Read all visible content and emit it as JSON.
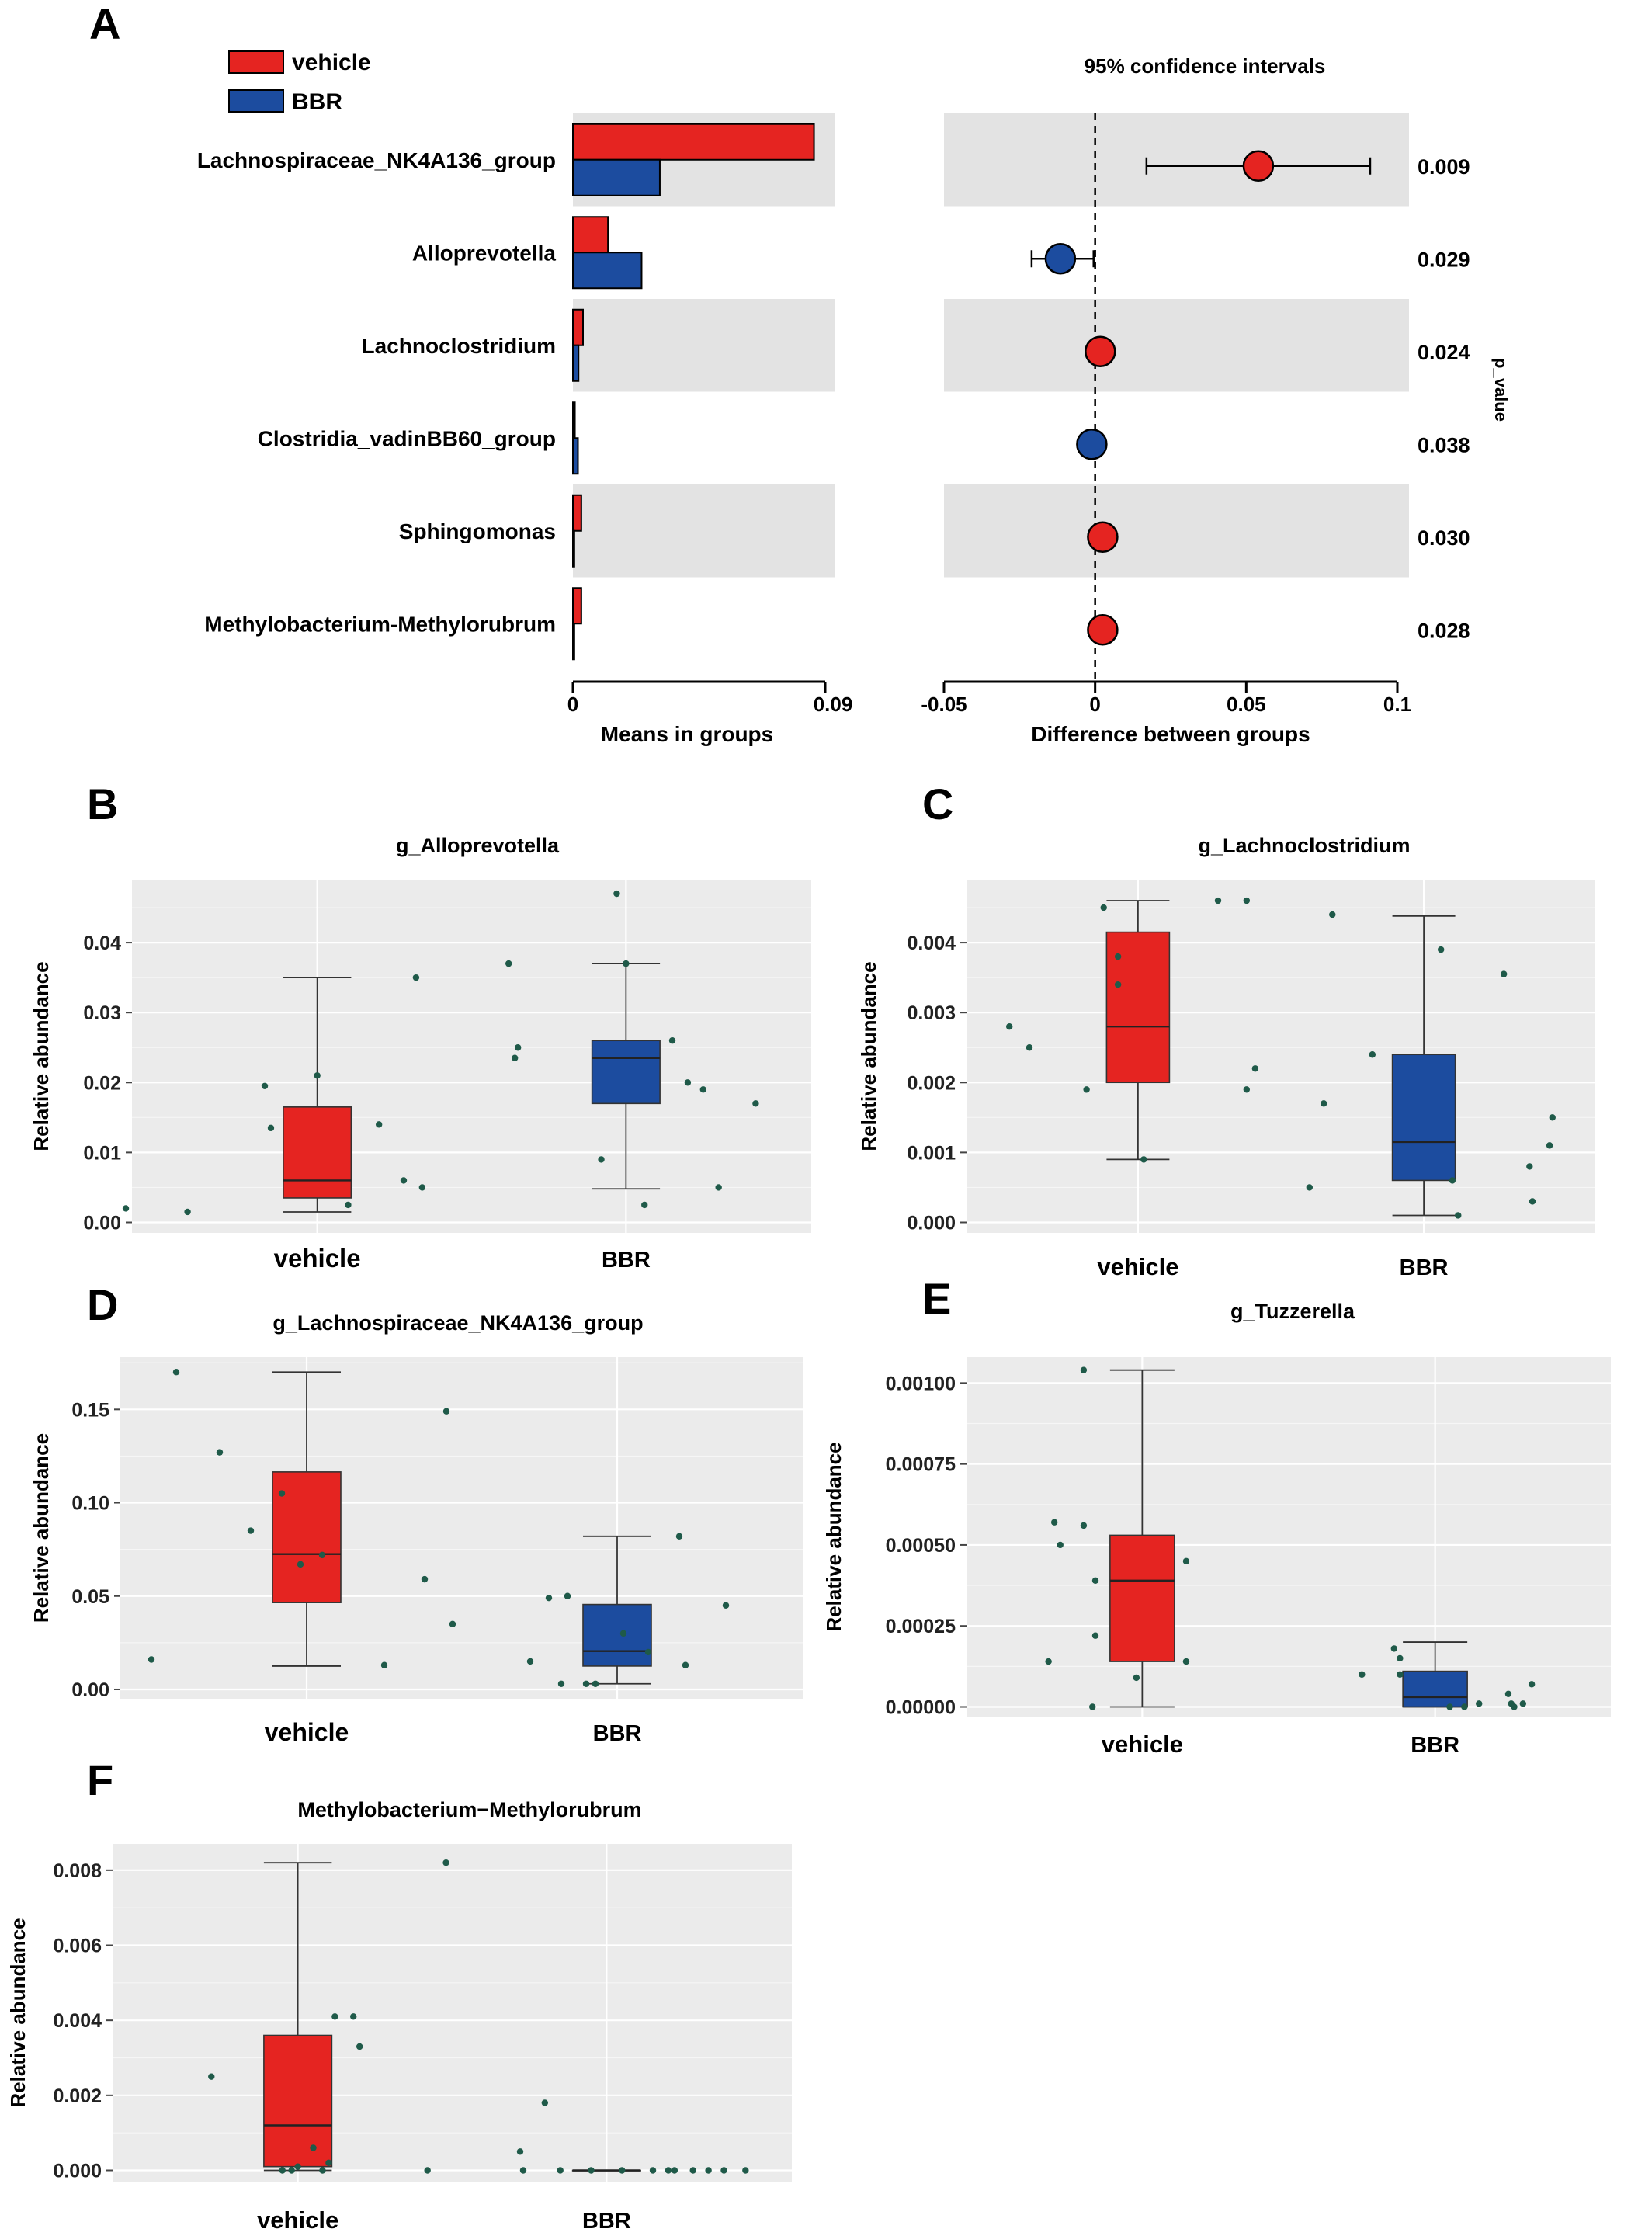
{
  "colors": {
    "vehicle": "#e52421",
    "BBR": "#1c4c9f",
    "panel_bg": "#ebebeb",
    "grid": "#ffffff",
    "stripe": "#e3e3e3",
    "dot": "#1f5a49"
  },
  "panel_letters": {
    "A": "A",
    "B": "B",
    "C": "C",
    "D": "D",
    "E": "E",
    "F": "F"
  },
  "legend": [
    {
      "name": "vehicle",
      "color": "#e52421"
    },
    {
      "name": "BBR",
      "color": "#1c4c9f"
    }
  ],
  "chart_data": [
    {
      "type": "bar",
      "panel": "A-left",
      "xlabel": "Means in groups",
      "xlim": [
        0,
        0.09
      ],
      "xticks": [
        "0",
        "0.09"
      ],
      "categories": [
        "Lachnospiraceae_NK4A136_group",
        "Alloprevotella",
        "Lachnoclostridium",
        "Clostridia_vadinBB60_group",
        "Sphingomonas",
        "Methylobacterium-Methylorubrum"
      ],
      "series": [
        {
          "name": "vehicle",
          "values": [
            0.086,
            0.0125,
            0.0036,
            0.0007,
            0.003,
            0.003
          ]
        },
        {
          "name": "BBR",
          "values": [
            0.031,
            0.0245,
            0.002,
            0.0018,
            0.0005,
            0.0005
          ]
        }
      ]
    },
    {
      "type": "scatter",
      "panel": "A-right",
      "title": "95% confidence intervals",
      "xlabel": "Difference between groups",
      "right_label": "p_value",
      "xlim": [
        -0.05,
        0.1
      ],
      "xticks": [
        "-0.05",
        "0",
        "0.05",
        "0.1"
      ],
      "categories": [
        "Lachnospiraceae_NK4A136_group",
        "Alloprevotella",
        "Lachnoclostridium",
        "Clostridia_vadinBB60_group",
        "Sphingomonas",
        "Methylobacterium-Methylorubrum"
      ],
      "estimates": [
        0.054,
        -0.0115,
        0.0017,
        -0.0011,
        0.0025,
        0.0025
      ],
      "ci_low": [
        0.017,
        -0.021,
        0.0005,
        -0.0025,
        0.0008,
        0.0008
      ],
      "ci_high": [
        0.091,
        -0.0005,
        0.003,
        0.0003,
        0.0042,
        0.0042
      ],
      "enriched": [
        "vehicle",
        "BBR",
        "vehicle",
        "BBR",
        "vehicle",
        "vehicle"
      ],
      "p_values": [
        "0.009",
        "0.029",
        "0.024",
        "0.038",
        "0.030",
        "0.028"
      ]
    },
    {
      "type": "box",
      "panel": "B",
      "title": "g_Alloprevotella",
      "ylabel": "Relative abundance",
      "categories": [
        "vehicle",
        "BBR"
      ],
      "ylim": [
        -0.0015,
        0.049
      ],
      "yticks": [
        "0.00",
        "0.01",
        "0.02",
        "0.03",
        "0.04"
      ],
      "boxes": [
        {
          "name": "vehicle",
          "min": 0.0015,
          "q1": 0.0035,
          "median": 0.006,
          "q3": 0.0165,
          "max": 0.035
        },
        {
          "name": "BBR",
          "min": 0.0048,
          "q1": 0.017,
          "median": 0.0235,
          "q3": 0.026,
          "max": 0.037
        }
      ],
      "points": [
        {
          "x": 0.38,
          "y": 0.002
        },
        {
          "x": 0.58,
          "y": 0.0015
        },
        {
          "x": 0.83,
          "y": 0.0195
        },
        {
          "x": 0.85,
          "y": 0.0135
        },
        {
          "x": 1.0,
          "y": 0.021
        },
        {
          "x": 1.1,
          "y": 0.0025
        },
        {
          "x": 1.2,
          "y": 0.014
        },
        {
          "x": 1.28,
          "y": 0.006
        },
        {
          "x": 1.32,
          "y": 0.035
        },
        {
          "x": 1.34,
          "y": 0.005
        },
        {
          "x": 1.62,
          "y": 0.037
        },
        {
          "x": 1.64,
          "y": 0.0235
        },
        {
          "x": 1.65,
          "y": 0.025
        },
        {
          "x": 1.92,
          "y": 0.009
        },
        {
          "x": 1.97,
          "y": 0.047
        },
        {
          "x": 2.0,
          "y": 0.037
        },
        {
          "x": 2.06,
          "y": 0.0025
        },
        {
          "x": 2.15,
          "y": 0.026
        },
        {
          "x": 2.2,
          "y": 0.02
        },
        {
          "x": 2.25,
          "y": 0.019
        },
        {
          "x": 2.3,
          "y": 0.005
        },
        {
          "x": 2.42,
          "y": 0.017
        }
      ]
    },
    {
      "type": "box",
      "panel": "C",
      "title": "g_Lachnoclostridium",
      "ylabel": "Relative abundance",
      "categories": [
        "vehicle",
        "BBR"
      ],
      "ylim": [
        -0.00015,
        0.0049
      ],
      "yticks": [
        "0.000",
        "0.001",
        "0.002",
        "0.003",
        "0.004"
      ],
      "boxes": [
        {
          "name": "vehicle",
          "min": 0.0009,
          "q1": 0.002,
          "median": 0.0028,
          "q3": 0.00415,
          "max": 0.0046
        },
        {
          "name": "BBR",
          "min": 0.0001,
          "q1": 0.0006,
          "median": 0.00115,
          "q3": 0.0024,
          "max": 0.00438
        }
      ],
      "points": [
        {
          "x": 0.55,
          "y": 0.0028
        },
        {
          "x": 0.62,
          "y": 0.0025
        },
        {
          "x": 0.82,
          "y": 0.0019
        },
        {
          "x": 0.88,
          "y": 0.0045
        },
        {
          "x": 0.93,
          "y": 0.0038
        },
        {
          "x": 0.93,
          "y": 0.0034
        },
        {
          "x": 1.02,
          "y": 0.0009
        },
        {
          "x": 1.28,
          "y": 0.0046
        },
        {
          "x": 1.38,
          "y": 0.0046
        },
        {
          "x": 1.38,
          "y": 0.0019
        },
        {
          "x": 1.41,
          "y": 0.0022
        },
        {
          "x": 1.6,
          "y": 0.0005
        },
        {
          "x": 1.65,
          "y": 0.0017
        },
        {
          "x": 1.68,
          "y": 0.0044
        },
        {
          "x": 1.82,
          "y": 0.0024
        },
        {
          "x": 2.06,
          "y": 0.0039
        },
        {
          "x": 2.1,
          "y": 0.0006
        },
        {
          "x": 2.12,
          "y": 0.0001
        },
        {
          "x": 2.28,
          "y": 0.00355
        },
        {
          "x": 2.37,
          "y": 0.0008
        },
        {
          "x": 2.38,
          "y": 0.0003
        },
        {
          "x": 2.44,
          "y": 0.0011
        },
        {
          "x": 2.45,
          "y": 0.0015
        }
      ]
    },
    {
      "type": "box",
      "panel": "D",
      "title": "g_Lachnospiraceae_NK4A136_group",
      "ylabel": "Relative abundance",
      "categories": [
        "vehicle",
        "BBR"
      ],
      "ylim": [
        -0.005,
        0.178
      ],
      "yticks": [
        "0.00",
        "0.05",
        "0.10",
        "0.15"
      ],
      "boxes": [
        {
          "name": "vehicle",
          "min": 0.0125,
          "q1": 0.0465,
          "median": 0.0725,
          "q3": 0.1165,
          "max": 0.17
        },
        {
          "name": "BBR",
          "min": 0.003,
          "q1": 0.0125,
          "median": 0.0205,
          "q3": 0.0455,
          "max": 0.082
        }
      ],
      "points": [
        {
          "x": 0.5,
          "y": 0.016
        },
        {
          "x": 0.58,
          "y": 0.17
        },
        {
          "x": 0.72,
          "y": 0.127
        },
        {
          "x": 0.82,
          "y": 0.085
        },
        {
          "x": 0.92,
          "y": 0.105
        },
        {
          "x": 0.98,
          "y": 0.067
        },
        {
          "x": 1.05,
          "y": 0.072
        },
        {
          "x": 1.25,
          "y": 0.013
        },
        {
          "x": 1.38,
          "y": 0.059
        },
        {
          "x": 1.45,
          "y": 0.149
        },
        {
          "x": 1.47,
          "y": 0.035
        },
        {
          "x": 1.72,
          "y": 0.015
        },
        {
          "x": 1.78,
          "y": 0.049
        },
        {
          "x": 1.82,
          "y": 0.003
        },
        {
          "x": 1.84,
          "y": 0.05
        },
        {
          "x": 1.9,
          "y": 0.003
        },
        {
          "x": 1.93,
          "y": 0.003
        },
        {
          "x": 2.02,
          "y": 0.03
        },
        {
          "x": 2.1,
          "y": 0.02
        },
        {
          "x": 2.2,
          "y": 0.082
        },
        {
          "x": 2.22,
          "y": 0.013
        },
        {
          "x": 2.35,
          "y": 0.045
        }
      ]
    },
    {
      "type": "box",
      "panel": "E",
      "title": "g_Tuzzerella",
      "ylabel": "Relative abundance",
      "categories": [
        "vehicle",
        "BBR"
      ],
      "ylim": [
        -3e-05,
        0.00108
      ],
      "yticks": [
        "0.00000",
        "0.00025",
        "0.00050",
        "0.00075",
        "0.00100"
      ],
      "boxes": [
        {
          "name": "vehicle",
          "min": 0.0,
          "q1": 0.00014,
          "median": 0.00039,
          "q3": 0.00053,
          "max": 0.00104
        },
        {
          "name": "BBR",
          "min": 0.0,
          "q1": 0.0,
          "median": 3e-05,
          "q3": 0.00011,
          "max": 0.0002
        }
      ],
      "points": [
        {
          "x": 0.68,
          "y": 0.00014
        },
        {
          "x": 0.7,
          "y": 0.00057
        },
        {
          "x": 0.72,
          "y": 0.0005
        },
        {
          "x": 0.8,
          "y": 0.00104
        },
        {
          "x": 0.8,
          "y": 0.00056
        },
        {
          "x": 0.84,
          "y": 0.00039
        },
        {
          "x": 0.84,
          "y": 0.00022
        },
        {
          "x": 0.83,
          "y": 0.0
        },
        {
          "x": 0.98,
          "y": 9e-05
        },
        {
          "x": 1.15,
          "y": 0.00045
        },
        {
          "x": 1.15,
          "y": 0.00014
        },
        {
          "x": 1.75,
          "y": 0.0001
        },
        {
          "x": 1.86,
          "y": 0.00018
        },
        {
          "x": 1.88,
          "y": 0.00015
        },
        {
          "x": 1.88,
          "y": 0.0001
        },
        {
          "x": 2.05,
          "y": 0.0
        },
        {
          "x": 2.1,
          "y": 0.0
        },
        {
          "x": 2.15,
          "y": 1e-05
        },
        {
          "x": 2.25,
          "y": 4e-05
        },
        {
          "x": 2.26,
          "y": 1e-05
        },
        {
          "x": 2.27,
          "y": 0.0
        },
        {
          "x": 2.3,
          "y": 1e-05
        },
        {
          "x": 2.33,
          "y": 7e-05
        }
      ]
    },
    {
      "type": "box",
      "panel": "F",
      "title": "Methylobacterium−Methylorubrum",
      "ylabel": "Relative abundance",
      "categories": [
        "vehicle",
        "BBR"
      ],
      "ylim": [
        -0.0003,
        0.0087
      ],
      "yticks": [
        "0.000",
        "0.002",
        "0.004",
        "0.006",
        "0.008"
      ],
      "boxes": [
        {
          "name": "vehicle",
          "min": 0.0,
          "q1": 0.0001,
          "median": 0.0012,
          "q3": 0.0036,
          "max": 0.0082
        },
        {
          "name": "BBR",
          "min": 0.0,
          "q1": 0.0,
          "median": 0.0,
          "q3": 0.0,
          "max": 0.0
        }
      ],
      "points": [
        {
          "x": 0.72,
          "y": 0.0025
        },
        {
          "x": 0.95,
          "y": 0.0
        },
        {
          "x": 0.98,
          "y": 0.0
        },
        {
          "x": 1.0,
          "y": 0.0001
        },
        {
          "x": 1.05,
          "y": 0.0006
        },
        {
          "x": 1.08,
          "y": 0.0
        },
        {
          "x": 1.12,
          "y": 0.0041
        },
        {
          "x": 1.18,
          "y": 0.0041
        },
        {
          "x": 1.2,
          "y": 0.0033
        },
        {
          "x": 1.1,
          "y": 0.0002
        },
        {
          "x": 1.42,
          "y": 0.0
        },
        {
          "x": 1.48,
          "y": 0.0082
        },
        {
          "x": 1.72,
          "y": 0.0005
        },
        {
          "x": 1.73,
          "y": 0.0
        },
        {
          "x": 1.8,
          "y": 0.0018
        },
        {
          "x": 1.85,
          "y": 0.0
        },
        {
          "x": 1.95,
          "y": 0.0
        },
        {
          "x": 2.05,
          "y": 0.0
        },
        {
          "x": 2.15,
          "y": 0.0
        },
        {
          "x": 2.2,
          "y": 0.0
        },
        {
          "x": 2.22,
          "y": 0.0
        },
        {
          "x": 2.28,
          "y": 0.0
        },
        {
          "x": 2.33,
          "y": 0.0
        },
        {
          "x": 2.38,
          "y": 0.0
        },
        {
          "x": 2.45,
          "y": 0.0
        }
      ]
    }
  ]
}
